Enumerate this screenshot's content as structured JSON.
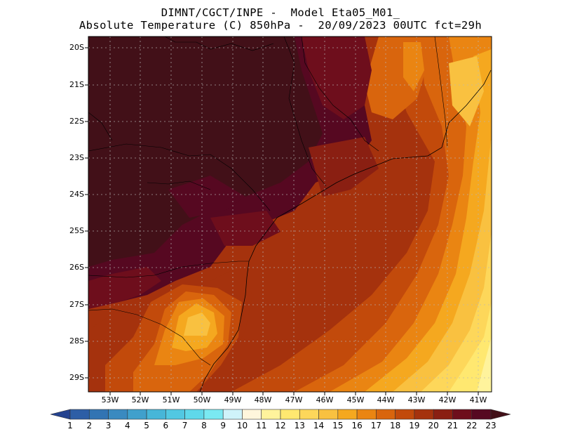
{
  "title": {
    "line1": "DIMNT/CGCT/INPE -  Model Eta05_M01_",
    "line2": "Absolute Temperature (C) 850hPa -  20/09/2023 00UTC fct=29h"
  },
  "lat_labels": [
    "20S",
    "21S",
    "22S",
    "23S",
    "24S",
    "25S",
    "26S",
    "27S",
    "28S",
    "29S"
  ],
  "lon_labels": [
    "53W",
    "52W",
    "51W",
    "50W",
    "49W",
    "48W",
    "47W",
    "46W",
    "45W",
    "44W",
    "43W",
    "42W",
    "41W"
  ],
  "colorbar": {
    "labels": [
      "1",
      "2",
      "3",
      "4",
      "5",
      "6",
      "7",
      "8",
      "9",
      "10",
      "11",
      "12",
      "13",
      "14",
      "15",
      "16",
      "17",
      "18",
      "19",
      "20",
      "21",
      "22",
      "23"
    ],
    "colors": [
      "#24428f",
      "#2d5ea6",
      "#3274b3",
      "#3a8ac0",
      "#40a0cc",
      "#47b6d8",
      "#52c8e2",
      "#5fd8ea",
      "#7ae9f2",
      "#cff3fa",
      "#fff6dc",
      "#fff39c",
      "#ffe870",
      "#fdd75a",
      "#f9c140",
      "#f5a81f",
      "#ea8512",
      "#d9650d",
      "#c24a0b",
      "#a5320d",
      "#8a1f12",
      "#6e0e1c",
      "#560821",
      "#421018"
    ]
  },
  "map": {
    "colors": {
      "t23": "#421018",
      "t22": "#560821",
      "t21": "#6e0e1c",
      "t20": "#8a1f12",
      "t19": "#a5320d",
      "t18": "#c24a0b",
      "t17": "#d9650d",
      "t16": "#ea8512",
      "t15": "#f5a81f",
      "t14": "#f9c140",
      "t13": "#fdd75a",
      "t12": "#ffe870",
      "t11": "#fff39c"
    }
  }
}
